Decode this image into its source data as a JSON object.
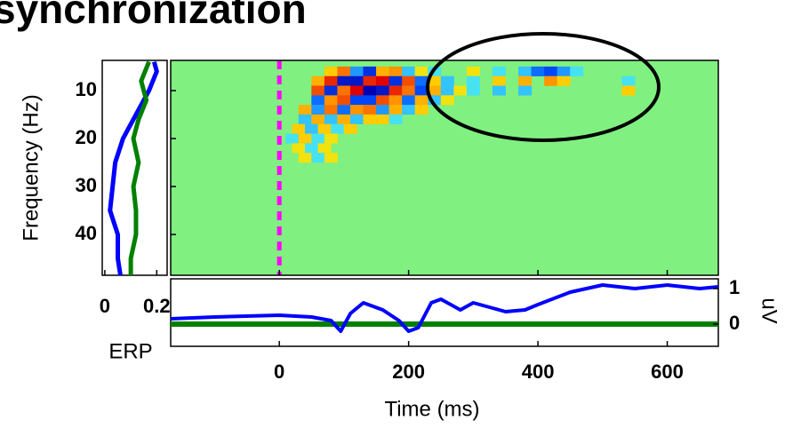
{
  "chart_data": [
    {
      "type": "heatmap",
      "title": "synchronization",
      "ylabel": "Frequency (Hz)",
      "xlim": [
        -168,
        679
      ],
      "ylim": [
        48.5,
        3.7
      ],
      "yticks": [
        10,
        20,
        30,
        40
      ],
      "event_time": 0,
      "event_color": "#ff00ff",
      "background": "#80f080",
      "clim": [
        -1,
        1
      ],
      "colormap": [
        "#0000b0",
        "#0050ff",
        "#40e0ff",
        "#80f080",
        "#ffe000",
        "#ff8000",
        "#e00000"
      ],
      "cells": [
        [
          80,
          6,
          0.4
        ],
        [
          100,
          6,
          0.7
        ],
        [
          120,
          6,
          -0.5
        ],
        [
          140,
          6,
          -0.8
        ],
        [
          160,
          6,
          0.5
        ],
        [
          180,
          6,
          0.6
        ],
        [
          200,
          6,
          -0.4
        ],
        [
          220,
          6,
          0.3
        ],
        [
          240,
          6,
          -0.3
        ],
        [
          300,
          6,
          0.3
        ],
        [
          340,
          6,
          -0.3
        ],
        [
          380,
          6,
          -0.4
        ],
        [
          400,
          6,
          -0.6
        ],
        [
          420,
          6,
          -0.7
        ],
        [
          440,
          6,
          -0.5
        ],
        [
          460,
          6,
          -0.3
        ],
        [
          60,
          8,
          0.5
        ],
        [
          80,
          8,
          0.9
        ],
        [
          100,
          8,
          -0.9
        ],
        [
          120,
          8,
          -0.9
        ],
        [
          140,
          8,
          0.9
        ],
        [
          160,
          8,
          1
        ],
        [
          180,
          8,
          -0.8
        ],
        [
          200,
          8,
          0.8
        ],
        [
          220,
          8,
          -0.6
        ],
        [
          240,
          8,
          0.4
        ],
        [
          260,
          8,
          -0.4
        ],
        [
          300,
          8,
          -0.3
        ],
        [
          340,
          8,
          0.4
        ],
        [
          380,
          8,
          0.5
        ],
        [
          420,
          8,
          0.6
        ],
        [
          440,
          8,
          0.4
        ],
        [
          540,
          8,
          -0.3
        ],
        [
          60,
          10,
          0.8
        ],
        [
          80,
          10,
          -0.8
        ],
        [
          100,
          10,
          0.7
        ],
        [
          120,
          10,
          1
        ],
        [
          140,
          10,
          -1
        ],
        [
          160,
          10,
          -0.9
        ],
        [
          180,
          10,
          0.9
        ],
        [
          200,
          10,
          0.7
        ],
        [
          220,
          10,
          -0.7
        ],
        [
          240,
          10,
          0.5
        ],
        [
          260,
          10,
          -0.4
        ],
        [
          280,
          10,
          0.3
        ],
        [
          300,
          10,
          -0.3
        ],
        [
          340,
          10,
          -0.4
        ],
        [
          380,
          10,
          -0.4
        ],
        [
          540,
          10,
          0.4
        ],
        [
          60,
          12,
          -0.6
        ],
        [
          80,
          12,
          0.6
        ],
        [
          100,
          12,
          0.8
        ],
        [
          120,
          12,
          -0.7
        ],
        [
          140,
          12,
          -0.7
        ],
        [
          160,
          12,
          0.8
        ],
        [
          180,
          12,
          0.6
        ],
        [
          200,
          12,
          -0.6
        ],
        [
          220,
          12,
          0.5
        ],
        [
          240,
          12,
          -0.4
        ],
        [
          260,
          12,
          0.3
        ],
        [
          40,
          14,
          0.5
        ],
        [
          60,
          14,
          -0.5
        ],
        [
          80,
          14,
          0.7
        ],
        [
          100,
          14,
          -0.6
        ],
        [
          120,
          14,
          0.6
        ],
        [
          140,
          14,
          0.7
        ],
        [
          160,
          14,
          -0.5
        ],
        [
          180,
          14,
          0.5
        ],
        [
          200,
          14,
          -0.4
        ],
        [
          220,
          14,
          0.4
        ],
        [
          40,
          16,
          -0.4
        ],
        [
          60,
          16,
          0.5
        ],
        [
          80,
          16,
          -0.4
        ],
        [
          100,
          16,
          0.5
        ],
        [
          120,
          16,
          -0.4
        ],
        [
          140,
          16,
          0.4
        ],
        [
          160,
          16,
          0.4
        ],
        [
          180,
          16,
          -0.3
        ],
        [
          30,
          18,
          0.4
        ],
        [
          50,
          18,
          -0.4
        ],
        [
          70,
          18,
          0.4
        ],
        [
          90,
          18,
          -0.3
        ],
        [
          110,
          18,
          0.4
        ],
        [
          20,
          20,
          -0.3
        ],
        [
          40,
          20,
          0.4
        ],
        [
          60,
          20,
          -0.3
        ],
        [
          80,
          20,
          0.3
        ],
        [
          30,
          22,
          0.3
        ],
        [
          50,
          22,
          -0.3
        ],
        [
          70,
          22,
          0.3
        ],
        [
          40,
          24,
          0.3
        ],
        [
          60,
          24,
          -0.3
        ],
        [
          80,
          24,
          0.3
        ]
      ]
    },
    {
      "type": "line",
      "xlabel": "ERP",
      "xlim": [
        -0.01,
        0.24
      ],
      "ylim": [
        48.5,
        3.7
      ],
      "xticks": [
        0,
        0.2
      ],
      "series": [
        {
          "color": "#0000ff",
          "x": [
            0.19,
            0.2,
            0.17,
            0.12,
            0.07,
            0.04,
            0.03,
            0.02,
            0.05,
            0.05,
            0.06
          ],
          "y": [
            4,
            6,
            10,
            15,
            20,
            25,
            30,
            35,
            40,
            45,
            48.5
          ]
        },
        {
          "color": "#008000",
          "x": [
            0.17,
            0.14,
            0.16,
            0.13,
            0.11,
            0.13,
            0.11,
            0.12,
            0.12,
            0.1,
            0.1
          ],
          "y": [
            4,
            8,
            12,
            16,
            20,
            25,
            30,
            35,
            40,
            45,
            48.5
          ]
        }
      ]
    },
    {
      "type": "line",
      "xlabel": "Time (ms)",
      "y2label": "uV",
      "xlim": [
        -168,
        679
      ],
      "xticks": [
        0,
        200,
        400,
        600
      ],
      "y2lim": [
        -0.625,
        1.275
      ],
      "y2ticks": [
        0,
        1
      ],
      "baseline": 0,
      "baseline_color": "#008000",
      "series": [
        {
          "color": "#0000ff",
          "axis": "y2",
          "x": [
            -168,
            -100,
            0,
            50,
            80,
            95,
            110,
            130,
            160,
            185,
            200,
            215,
            235,
            250,
            280,
            300,
            320,
            350,
            380,
            400,
            450,
            500,
            550,
            600,
            650,
            679
          ],
          "values": [
            0.15,
            0.2,
            0.25,
            0.2,
            0.1,
            -0.2,
            0.3,
            0.6,
            0.4,
            0.1,
            -0.2,
            -0.1,
            0.6,
            0.7,
            0.4,
            0.6,
            0.5,
            0.35,
            0.4,
            0.55,
            0.9,
            1.1,
            1.0,
            1.1,
            1.0,
            1.05
          ]
        }
      ]
    }
  ]
}
